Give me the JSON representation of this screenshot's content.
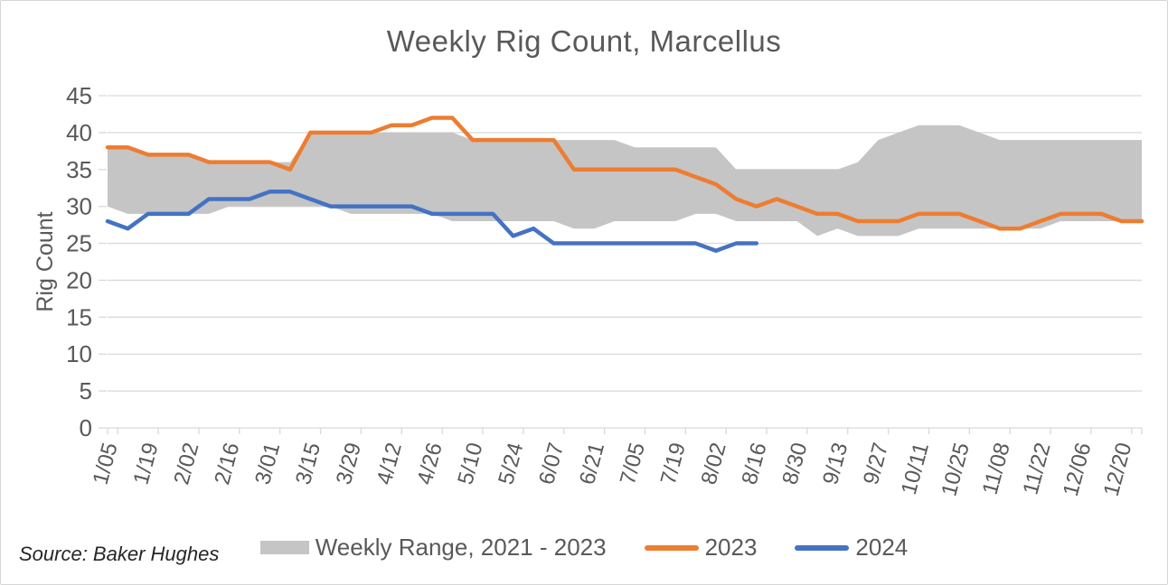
{
  "title": "Weekly Rig Count, Marcellus",
  "source_note": "Source: Baker Hughes",
  "colors": {
    "band": "#c5c5c5",
    "line_2023": "#ed7d31",
    "line_2024": "#4472c4",
    "gridline": "#d9d9d9",
    "tick": "#d9d9d9",
    "text": "#595959",
    "source_text": "#262626",
    "background": "#ffffff"
  },
  "chart_data": {
    "type": "area",
    "title": "Weekly Rig Count, Marcellus",
    "ylabel": "Rig Count",
    "xlabel": "",
    "ylim": [
      0,
      45
    ],
    "y_tick_step": 5,
    "y_tick_labels": [
      "0",
      "5",
      "10",
      "15",
      "20",
      "25",
      "30",
      "35",
      "40",
      "45"
    ],
    "grid": "horizontal",
    "legend_position": "bottom",
    "weeks_total": 52,
    "x_tick_labels": [
      "1/05",
      "1/19",
      "2/02",
      "2/16",
      "3/01",
      "3/15",
      "3/29",
      "4/12",
      "4/26",
      "5/10",
      "5/24",
      "6/07",
      "6/21",
      "7/05",
      "7/19",
      "8/02",
      "8/16",
      "8/30",
      "9/13",
      "9/27",
      "10/11",
      "10/25",
      "11/08",
      "11/22",
      "12/06",
      "12/20"
    ],
    "x_labels_every_n_weeks": 2,
    "series": [
      {
        "name": "Weekly Range, 2021 - 2023",
        "type": "band",
        "upper": [
          38,
          38,
          37,
          37,
          37,
          36,
          36,
          36,
          36,
          36,
          40,
          40,
          40,
          40,
          40,
          40,
          40,
          40,
          39,
          39,
          39,
          39,
          39,
          39,
          39,
          39,
          38,
          38,
          38,
          38,
          38,
          35,
          35,
          35,
          35,
          35,
          35,
          36,
          39,
          40,
          41,
          41,
          41,
          40,
          39,
          39,
          39,
          39,
          39,
          39,
          39,
          39
        ],
        "lower": [
          30,
          29,
          29,
          29,
          29,
          29,
          30,
          30,
          30,
          30,
          30,
          30,
          29,
          29,
          29,
          29,
          29,
          28,
          28,
          28,
          28,
          28,
          28,
          27,
          27,
          28,
          28,
          28,
          28,
          29,
          29,
          28,
          28,
          28,
          28,
          26,
          27,
          26,
          26,
          26,
          27,
          27,
          27,
          27,
          27,
          27,
          27,
          28,
          28,
          28,
          28,
          28
        ]
      },
      {
        "name": "2023",
        "type": "line",
        "values": [
          38,
          38,
          37,
          37,
          37,
          36,
          36,
          36,
          36,
          35,
          40,
          40,
          40,
          40,
          41,
          41,
          42,
          42,
          39,
          39,
          39,
          39,
          39,
          35,
          35,
          35,
          35,
          35,
          35,
          34,
          33,
          31,
          30,
          31,
          30,
          29,
          29,
          28,
          28,
          28,
          29,
          29,
          29,
          28,
          27,
          27,
          28,
          29,
          29,
          29,
          28,
          28
        ]
      },
      {
        "name": "2024",
        "type": "line",
        "values": [
          28,
          27,
          29,
          29,
          29,
          31,
          31,
          31,
          32,
          32,
          31,
          30,
          30,
          30,
          30,
          30,
          29,
          29,
          29,
          29,
          26,
          27,
          25,
          25,
          25,
          25,
          25,
          25,
          25,
          25,
          24,
          25,
          25
        ]
      }
    ]
  }
}
